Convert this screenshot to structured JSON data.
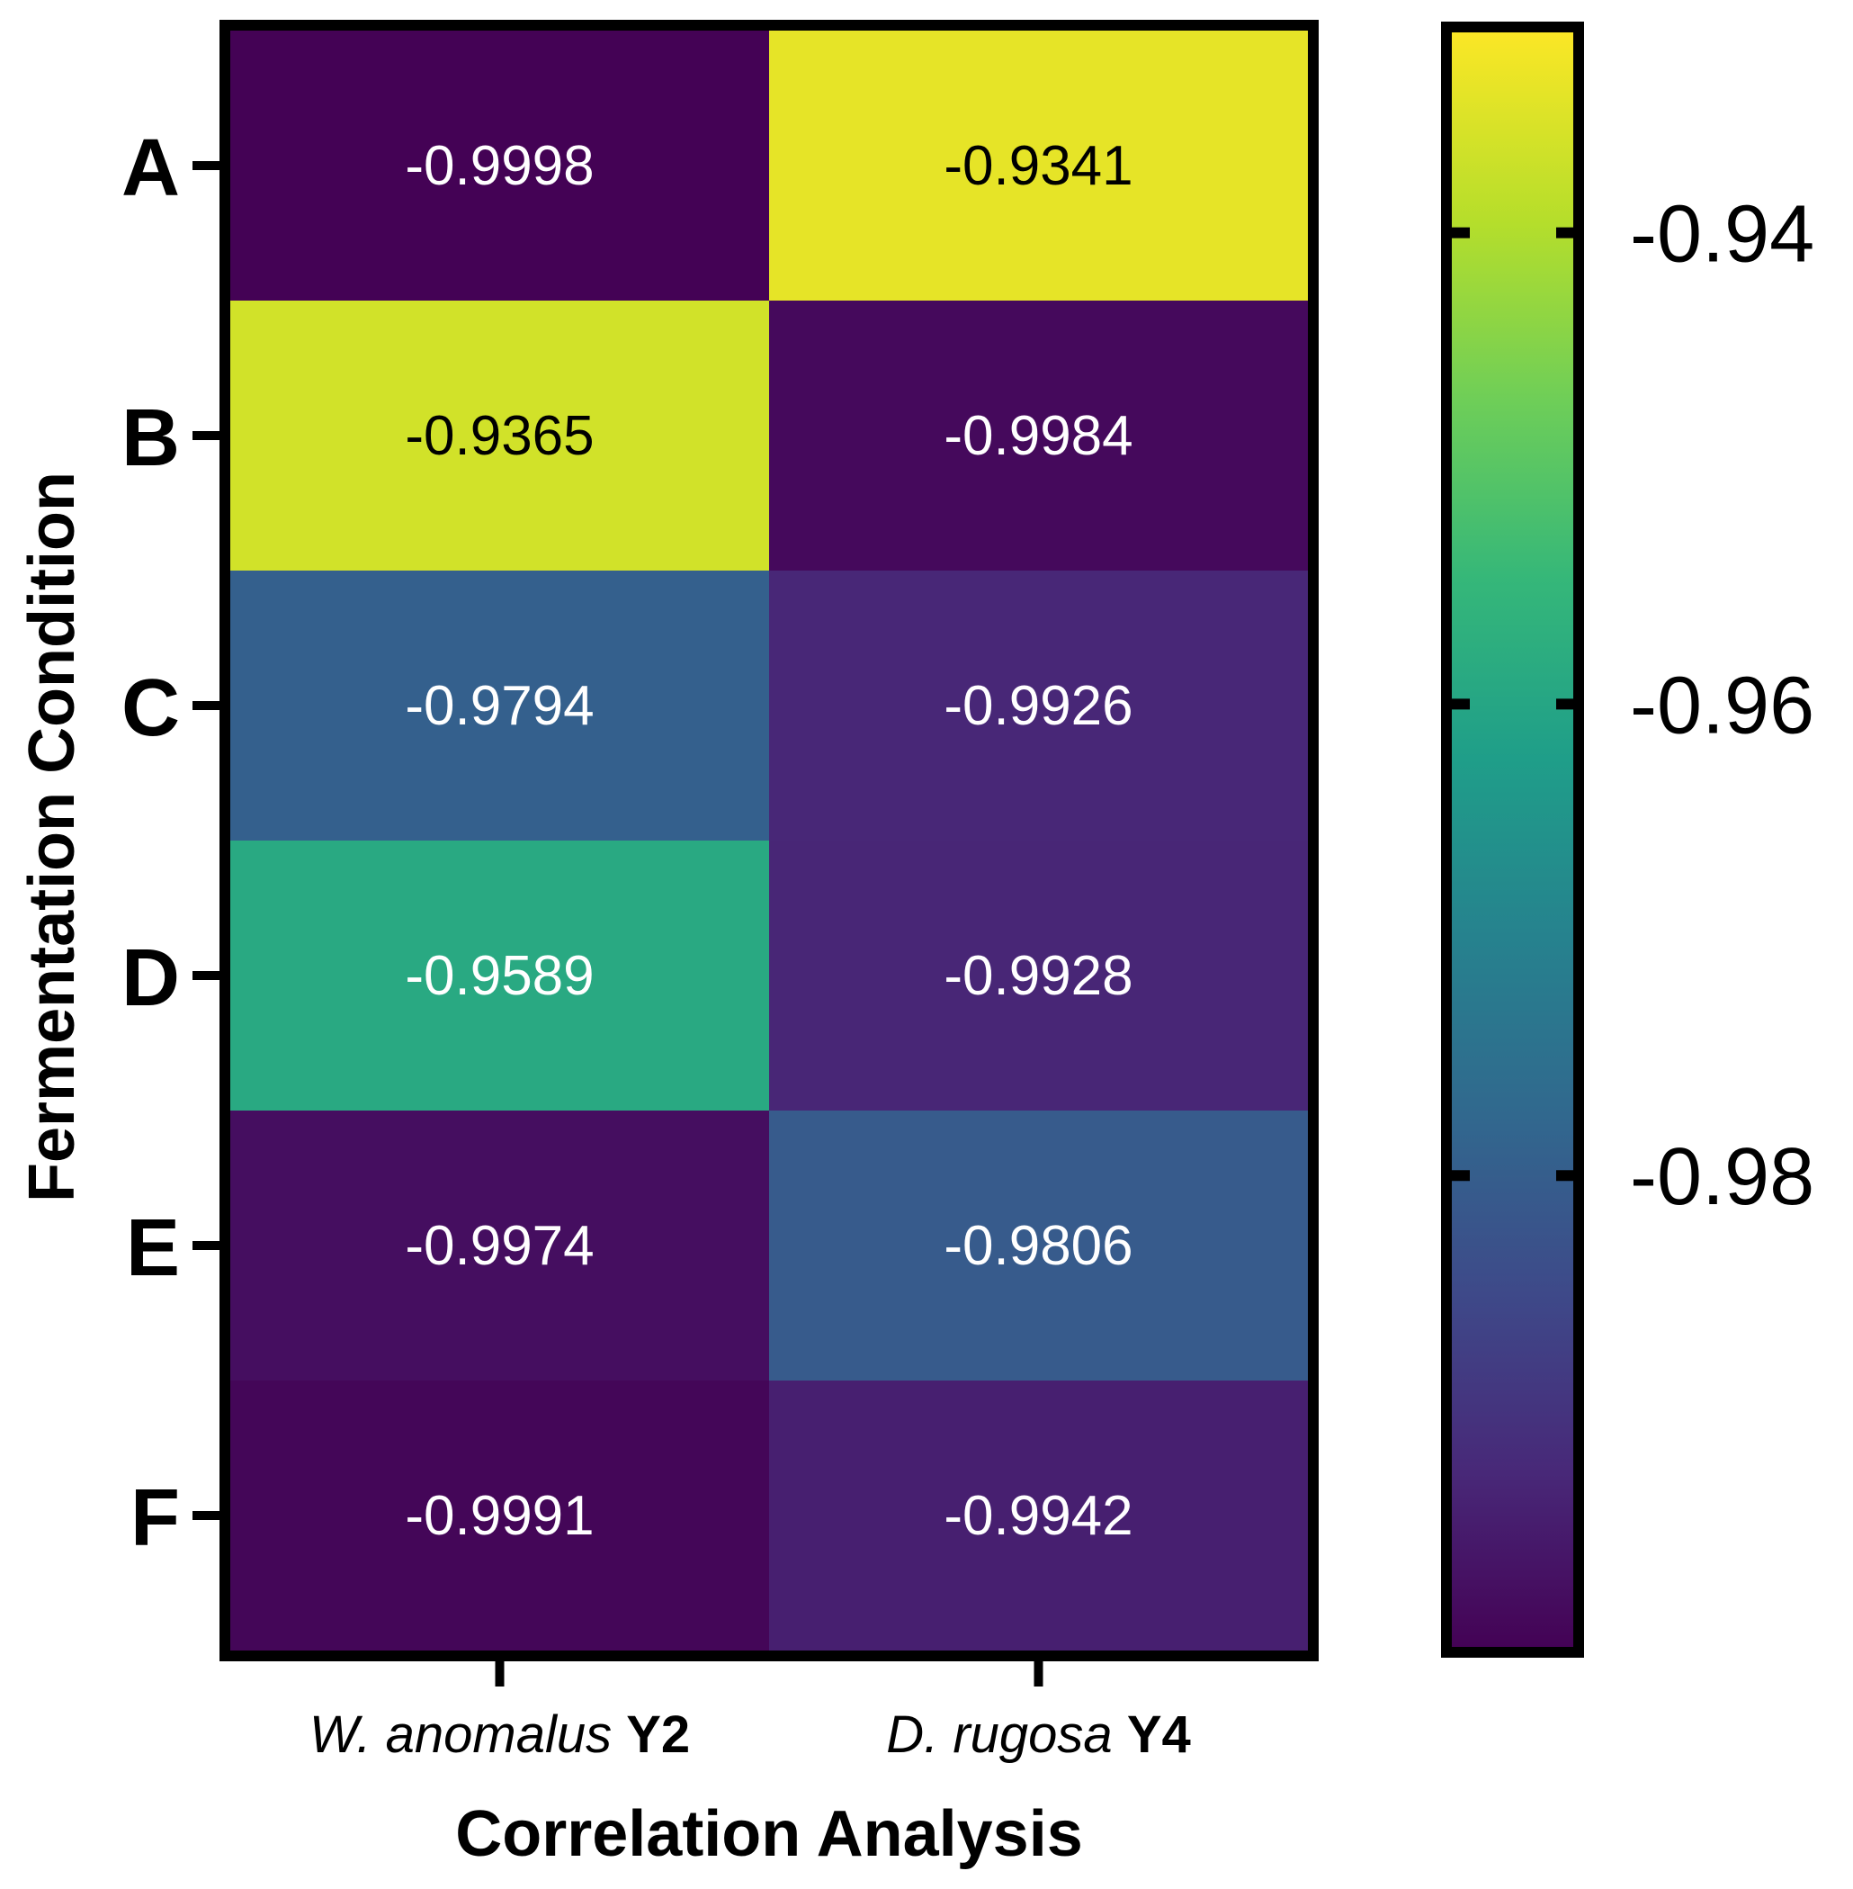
{
  "chart_data": {
    "type": "heatmap",
    "title": "",
    "xlabel": "Correlation Analysis",
    "ylabel": "Fermentation Condition",
    "rows": [
      "A",
      "B",
      "C",
      "D",
      "E",
      "F"
    ],
    "columns": [
      {
        "species": "W. anomalus",
        "strain": "Y2"
      },
      {
        "species": "D. rugosa",
        "strain": "Y4"
      }
    ],
    "values": [
      [
        -0.9998,
        -0.9341
      ],
      [
        -0.9365,
        -0.9984
      ],
      [
        -0.9794,
        -0.9926
      ],
      [
        -0.9589,
        -0.9928
      ],
      [
        -0.9974,
        -0.9806
      ],
      [
        -0.9991,
        -0.9942
      ]
    ],
    "value_labels": [
      [
        "-0.9998",
        "-0.9341"
      ],
      [
        "-0.9365",
        "-0.9984"
      ],
      [
        "-0.9794",
        "-0.9926"
      ],
      [
        "-0.9589",
        "-0.9928"
      ],
      [
        "-0.9974",
        "-0.9806"
      ],
      [
        "-0.9991",
        "-0.9942"
      ]
    ],
    "colormap": "viridis",
    "colorbar": {
      "range": [
        -1.0,
        -0.9315
      ],
      "ticks": [
        -0.94,
        -0.96,
        -0.98
      ],
      "tick_labels": [
        "-0.94",
        "-0.96",
        "-0.98"
      ]
    }
  }
}
